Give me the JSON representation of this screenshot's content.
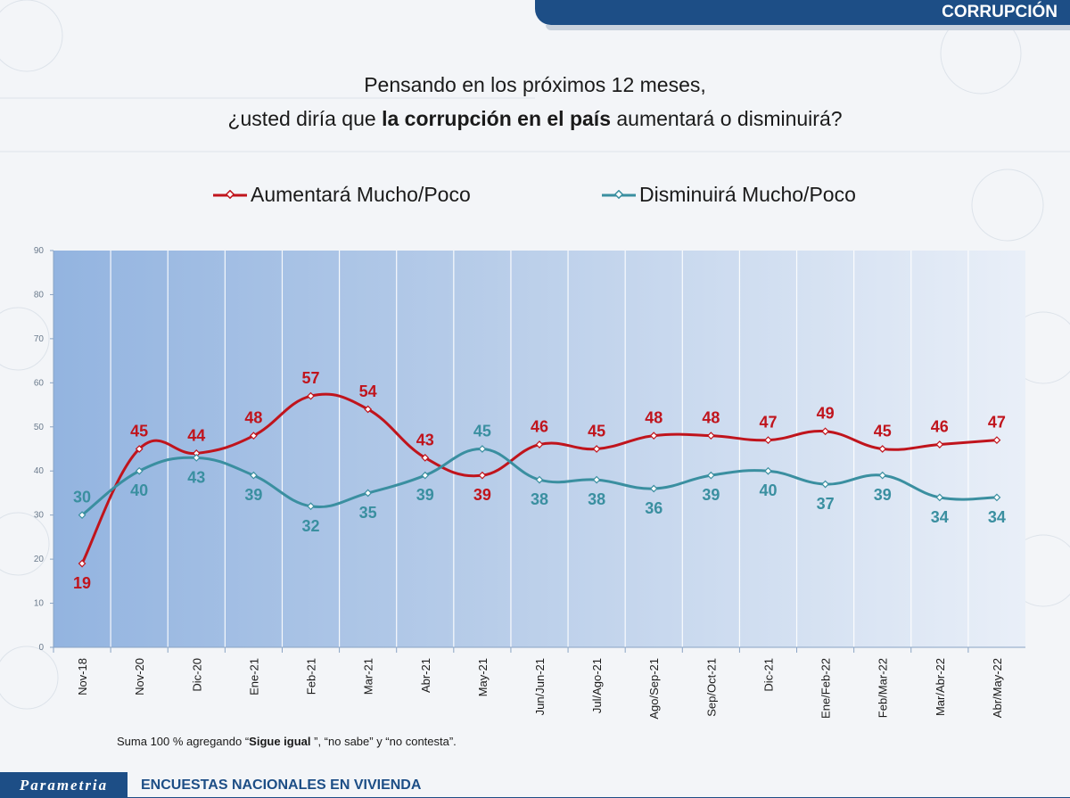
{
  "header": {
    "section_label": "CORRUPCIÓN"
  },
  "question": {
    "line1": "Pensando en los próximos 12 meses,",
    "line2_pre": "¿usted diría que ",
    "line2_bold": "la corrupción en el país",
    "line2_post": " aumentará o disminuirá?"
  },
  "note": {
    "pre": "Suma 100 %  agregando “",
    "bold": "Sigue igual",
    "post": " ”, “no sabe” y “no contesta”."
  },
  "footer": {
    "logo_text": "Parametria",
    "caption": "ENCUESTAS NACIONALES EN VIVIENDA"
  },
  "colors": {
    "aumentara": "#c0141c",
    "disminuira": "#3a8fa0",
    "banner": "#1d4e86"
  },
  "chart_data": {
    "type": "line",
    "categories": [
      "Nov-18",
      "Nov-20",
      "Dic-20",
      "Ene-21",
      "Feb-21",
      "Mar-21",
      "Abr-21",
      "May-21",
      "Jun/Jun-21",
      "Jul/Ago-21",
      "Ago/Sep-21",
      "Sep/Oct-21",
      "Dic-21",
      "Ene/Feb-22",
      "Feb/Mar-22",
      "Mar/Abr-22",
      "Abr/May-22"
    ],
    "series": [
      {
        "name": "Aumentará Mucho/Poco",
        "values": [
          19,
          45,
          44,
          48,
          57,
          54,
          43,
          39,
          46,
          45,
          48,
          48,
          47,
          49,
          45,
          46,
          47
        ]
      },
      {
        "name": "Disminuirá Mucho/Poco",
        "values": [
          30,
          40,
          43,
          39,
          32,
          35,
          39,
          45,
          38,
          38,
          36,
          39,
          40,
          37,
          39,
          34,
          34
        ]
      }
    ],
    "ylim": [
      0,
      90
    ],
    "yticks": [
      0,
      10,
      20,
      30,
      40,
      50,
      60,
      70,
      80,
      90
    ],
    "grid": true,
    "legend_position": "top"
  }
}
